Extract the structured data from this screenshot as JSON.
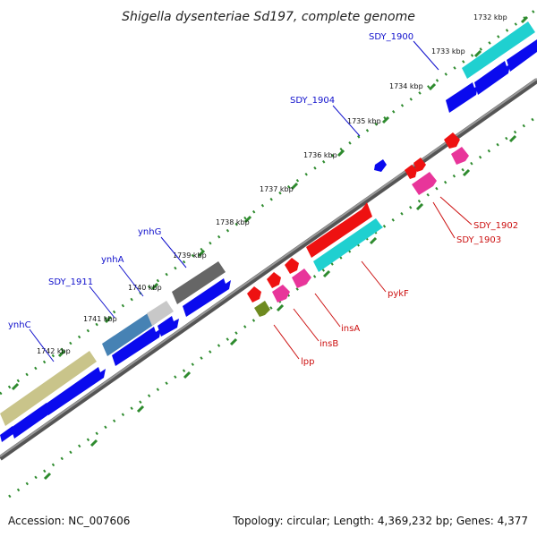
{
  "title": "Shigella dysenteriae Sd197, complete genome",
  "accession_text": "Accession: NC_007606",
  "info_text": "Topology: circular; Length: 4,369,232 bp; Genes: 4,377",
  "colors": {
    "backbone": "#777777",
    "ruler_dot": "#2e8b2e",
    "forward_label": "#1010cc",
    "reverse_label": "#cc1010",
    "blue": "#0a0aee",
    "red": "#ee1111",
    "cyan": "#1fd0d0",
    "pink": "#e8359a",
    "olive": "#6e8a1f",
    "khaki": "#c9c48a",
    "steelblue": "#4682b4",
    "lightgray": "#c8c8c8",
    "darkgray": "#666666"
  },
  "ticks": [
    "1732 kbp",
    "1733 kbp",
    "1734 kbp",
    "1735 kbp",
    "1736 kbp",
    "1737 kbp",
    "1738 kbp",
    "1739 kbp",
    "1740 kbp",
    "1741 kbp",
    "1742 kbp"
  ],
  "forward_labels": [
    {
      "text": "SDY_1900"
    },
    {
      "text": "SDY_1904"
    },
    {
      "text": "ynhG"
    },
    {
      "text": "ynhA"
    },
    {
      "text": "SDY_1911"
    },
    {
      "text": "ynhC"
    }
  ],
  "reverse_labels": [
    {
      "text": "SDY_1902"
    },
    {
      "text": "SDY_1903"
    },
    {
      "text": "pykF"
    },
    {
      "text": "insA"
    },
    {
      "text": "insB"
    },
    {
      "text": "lpp"
    }
  ]
}
